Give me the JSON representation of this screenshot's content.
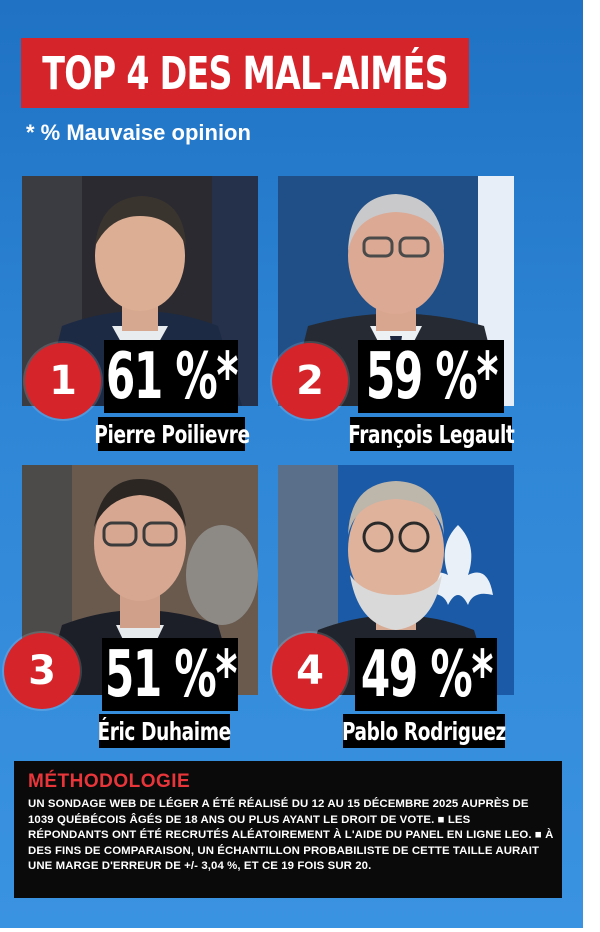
{
  "header": {
    "title": "TOP 4 DES MAL-AIMÉS",
    "subtitle": "* % Mauvaise opinion"
  },
  "entries": [
    {
      "rank": "1",
      "percent": "61 %*",
      "name": "Pierre Poilievre"
    },
    {
      "rank": "2",
      "percent": "59 %*",
      "name": "François Legault"
    },
    {
      "rank": "3",
      "percent": "51 %*",
      "name": "Éric Duhaime"
    },
    {
      "rank": "4",
      "percent": "49 %*",
      "name": "Pablo Rodriguez"
    }
  ],
  "methodology": {
    "title": "MÉTHODOLOGIE",
    "body": "UN SONDAGE WEB DE LÉGER A ÉTÉ RÉALISÉ DU 12 AU 15 DÉCEMBRE 2025 AUPRÈS DE 1039 QUÉBÉCOIS ÂGÉS DE 18 ANS OU PLUS AYANT LE DROIT DE VOTE. ■ LES RÉPONDANTS ONT ÉTÉ RECRUTÉS ALÉATOIREMENT À L'AIDE DU PANEL EN LIGNE LEO. ■ À DES FINS DE COMPARAISON, UN ÉCHANTILLON PROBABILISTE DE CETTE TAILLE AURAIT UNE MARGE D'ERREUR DE +/- 3,04 %, ET CE 19 FOIS SUR 20."
  },
  "colors": {
    "background": "#2a80d2",
    "accent_red": "#d6242b",
    "label_black": "#000000"
  }
}
